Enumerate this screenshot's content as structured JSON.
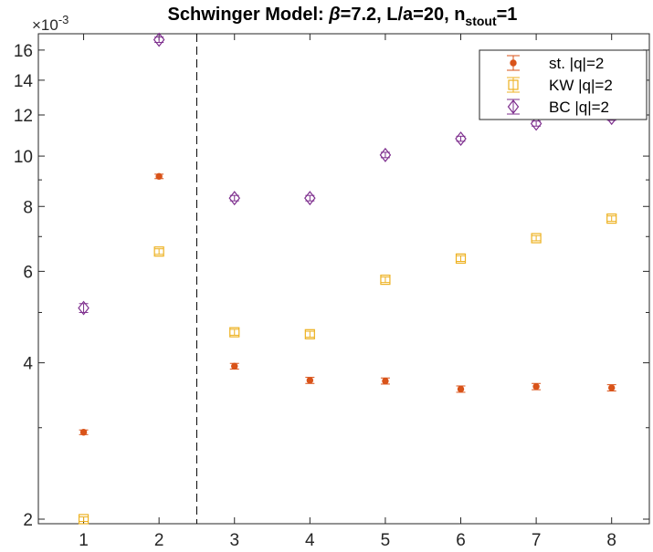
{
  "chart_data": {
    "type": "scatter",
    "title": {
      "main": "Schwinger Model: ",
      "beta_symbol": "β",
      "beta_rest": "=7.2, L/a=20, n",
      "subscript": "stout",
      "suffix": "=1"
    },
    "y_exponent": {
      "base": "×10",
      "power": "-3"
    },
    "y_scale": "log",
    "y_multiplier": 0.001,
    "xlim": [
      0.4,
      8.5
    ],
    "ylim": [
      1.96,
      17.2
    ],
    "x_ticks": [
      1,
      2,
      3,
      4,
      5,
      6,
      7,
      8
    ],
    "x_tick_labels": [
      "1",
      "2",
      "3",
      "4",
      "5",
      "6",
      "7",
      "8"
    ],
    "y_ticks": [
      2,
      4,
      6,
      8,
      10,
      12,
      14,
      16
    ],
    "y_tick_labels": [
      "2",
      "4",
      "6",
      "8",
      "10",
      "12",
      "14",
      "16"
    ],
    "vertical_line": {
      "x": 2.5,
      "style": "dashed"
    },
    "legend_position": "top-right",
    "grid": false,
    "series": [
      {
        "name": "st.  |q|=2",
        "marker": "dot",
        "color": "#D95319",
        "x": [
          1,
          2,
          3,
          4,
          5,
          6,
          7,
          8
        ],
        "y": [
          2.94,
          9.14,
          3.94,
          3.7,
          3.69,
          3.56,
          3.6,
          3.58
        ],
        "err": [
          0.03,
          0.09,
          0.05,
          0.05,
          0.05,
          0.05,
          0.05,
          0.05
        ]
      },
      {
        "name": "KW |q|=2",
        "marker": "square",
        "color": "#EDB120",
        "x": [
          1,
          2,
          3,
          4,
          5,
          6,
          7,
          8
        ],
        "y": [
          2.0,
          6.55,
          4.58,
          4.54,
          5.78,
          6.35,
          6.95,
          7.58
        ],
        "err": [
          0.02,
          0.08,
          0.06,
          0.06,
          0.07,
          0.08,
          0.08,
          0.09
        ]
      },
      {
        "name": "BC  |q|=2",
        "marker": "diamond",
        "color": "#7E2F8E",
        "x": [
          1,
          2,
          3,
          4,
          5,
          6,
          7,
          8
        ],
        "y": [
          5.1,
          16.75,
          8.3,
          8.3,
          10.05,
          10.8,
          11.55,
          11.85
        ],
        "err": [
          0.1,
          0.2,
          0.1,
          0.1,
          0.12,
          0.12,
          0.13,
          0.13
        ]
      }
    ]
  }
}
